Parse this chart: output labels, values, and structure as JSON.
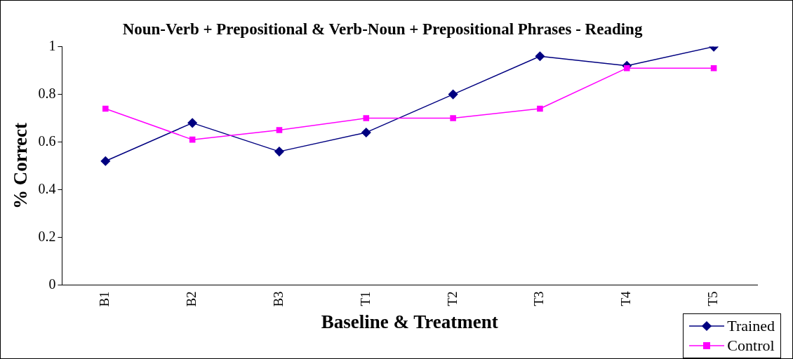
{
  "chart_data": {
    "type": "line",
    "title": "Noun-Verb + Prepositional & Verb-Noun + Prepositional Phrases - Reading",
    "xlabel": "Baseline & Treatment",
    "ylabel": "% Correct",
    "categories": [
      "B1",
      "B2",
      "B3",
      "T1",
      "T2",
      "T3",
      "T4",
      "T5"
    ],
    "series": [
      {
        "name": "Trained",
        "color": "#000080",
        "marker": "diamond",
        "values": [
          0.52,
          0.68,
          0.56,
          0.64,
          0.8,
          0.96,
          0.92,
          1
        ]
      },
      {
        "name": "Control",
        "color": "#ff00ff",
        "marker": "square",
        "values": [
          0.74,
          0.61,
          0.65,
          0.7,
          0.7,
          0.74,
          0.91,
          0.91
        ]
      }
    ],
    "ylim": [
      0,
      1
    ],
    "yticks": [
      0,
      0.2,
      0.4,
      0.6,
      0.8,
      1
    ],
    "grid": false,
    "legend": "bottom right",
    "line_style": "solid"
  }
}
